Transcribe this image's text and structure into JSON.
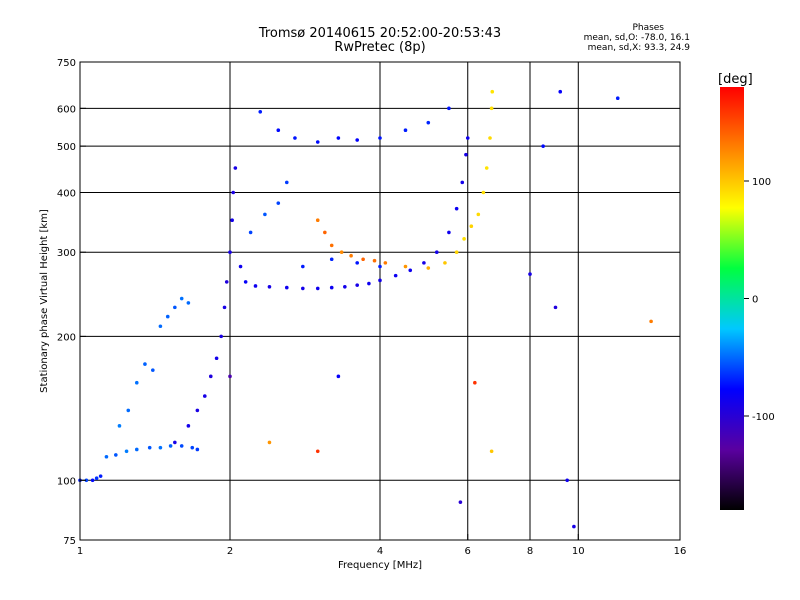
{
  "header": {
    "title": "Tromsø 20140615 20:52:00-20:53:43",
    "subtitle": "RwPretec (8p)",
    "stats_heading": "Phases",
    "stats_o": "mean, sd,O: -78.0, 16.1",
    "stats_x": "mean, sd,X:  93.3, 24.9"
  },
  "chart_data": {
    "type": "scatter",
    "xlabel": "Frequency [MHz]",
    "ylabel": "Stationary phase Virtual Height [km]",
    "x_scale": "log",
    "y_scale": "log",
    "xlim": [
      1,
      16
    ],
    "ylim": [
      75,
      750
    ],
    "x_ticks": [
      1,
      2,
      4,
      6,
      8,
      10,
      16
    ],
    "y_ticks": [
      75,
      100,
      200,
      300,
      400,
      500,
      600,
      750
    ],
    "grid": true,
    "colorbar": {
      "label": "[deg]",
      "range": [
        -180,
        180
      ],
      "ticks": [
        100,
        0,
        -100
      ],
      "colors": [
        "#000000",
        "#5a00a0",
        "#0000ff",
        "#00c8ff",
        "#00ff40",
        "#ffff00",
        "#ff8000",
        "#ff0000"
      ]
    },
    "series": [
      {
        "trace": "o-mode-low",
        "points": [
          [
            1.0,
            100,
            -70
          ],
          [
            1.03,
            100,
            -60
          ],
          [
            1.06,
            100,
            -75
          ],
          [
            1.08,
            101,
            -65
          ],
          [
            1.1,
            102,
            -70
          ],
          [
            1.13,
            112,
            -50
          ],
          [
            1.18,
            113,
            -55
          ],
          [
            1.24,
            115,
            -45
          ],
          [
            1.3,
            116,
            -50
          ],
          [
            1.38,
            117,
            -55
          ],
          [
            1.45,
            117,
            -48
          ],
          [
            1.52,
            118,
            -52
          ],
          [
            1.6,
            118,
            -58
          ],
          [
            1.68,
            117,
            -60
          ],
          [
            1.72,
            116,
            -62
          ],
          [
            1.2,
            130,
            -45
          ],
          [
            1.25,
            140,
            -50
          ],
          [
            1.3,
            160,
            -48
          ],
          [
            1.35,
            175,
            -52
          ],
          [
            1.4,
            170,
            -55
          ],
          [
            1.45,
            210,
            -50
          ],
          [
            1.5,
            220,
            -52
          ],
          [
            1.55,
            230,
            -55
          ],
          [
            1.6,
            240,
            -48
          ],
          [
            1.65,
            235,
            -50
          ]
        ]
      },
      {
        "trace": "o-mode-f-region",
        "points": [
          [
            1.55,
            120,
            -90
          ],
          [
            1.65,
            130,
            -88
          ],
          [
            1.72,
            140,
            -92
          ],
          [
            1.78,
            150,
            -90
          ],
          [
            1.83,
            165,
            -95
          ],
          [
            1.88,
            180,
            -88
          ],
          [
            1.92,
            200,
            -92
          ],
          [
            1.95,
            230,
            -90
          ],
          [
            1.97,
            260,
            -95
          ],
          [
            2.0,
            300,
            -90
          ],
          [
            2.02,
            350,
            -88
          ],
          [
            2.03,
            400,
            -92
          ],
          [
            2.05,
            450,
            -90
          ],
          [
            2.1,
            280,
            -85
          ],
          [
            2.15,
            260,
            -80
          ],
          [
            2.25,
            255,
            -85
          ],
          [
            2.4,
            254,
            -90
          ],
          [
            2.6,
            253,
            -85
          ],
          [
            2.8,
            252,
            -88
          ],
          [
            3.0,
            252,
            -86
          ],
          [
            3.2,
            253,
            -84
          ],
          [
            3.4,
            254,
            -88
          ],
          [
            3.6,
            256,
            -90
          ],
          [
            3.8,
            258,
            -85
          ],
          [
            4.0,
            262,
            -88
          ],
          [
            4.3,
            268,
            -84
          ],
          [
            4.6,
            275,
            -86
          ],
          [
            4.9,
            285,
            -90
          ],
          [
            5.2,
            300,
            -88
          ],
          [
            5.5,
            330,
            -86
          ],
          [
            5.7,
            370,
            -84
          ],
          [
            5.85,
            420,
            -88
          ],
          [
            5.95,
            480,
            -90
          ],
          [
            6.0,
            520,
            -86
          ],
          [
            2.2,
            330,
            -60
          ],
          [
            2.35,
            360,
            -55
          ],
          [
            2.5,
            380,
            -60
          ],
          [
            2.6,
            420,
            -62
          ],
          [
            2.3,
            590,
            -70
          ],
          [
            2.5,
            540,
            -75
          ],
          [
            2.7,
            520,
            -72
          ],
          [
            3.0,
            510,
            -74
          ],
          [
            3.3,
            520,
            -76
          ],
          [
            3.6,
            515,
            -78
          ],
          [
            4.0,
            520,
            -72
          ],
          [
            4.5,
            540,
            -70
          ],
          [
            5.0,
            560,
            -68
          ],
          [
            5.5,
            600,
            -72
          ],
          [
            2.8,
            280,
            -70
          ],
          [
            3.2,
            290,
            -68
          ],
          [
            3.6,
            285,
            -72
          ],
          [
            4.0,
            280,
            -70
          ]
        ]
      },
      {
        "trace": "x-mode-f-region",
        "points": [
          [
            3.0,
            350,
            130
          ],
          [
            3.1,
            330,
            140
          ],
          [
            3.2,
            310,
            135
          ],
          [
            3.35,
            300,
            125
          ],
          [
            3.5,
            295,
            130
          ],
          [
            3.7,
            290,
            140
          ],
          [
            3.9,
            288,
            135
          ],
          [
            4.1,
            285,
            130
          ],
          [
            4.5,
            280,
            120
          ],
          [
            5.0,
            278,
            110
          ],
          [
            5.4,
            285,
            100
          ],
          [
            5.7,
            300,
            95
          ],
          [
            5.9,
            320,
            90
          ],
          [
            6.1,
            340,
            95
          ],
          [
            6.3,
            360,
            92
          ],
          [
            6.45,
            400,
            90
          ],
          [
            6.55,
            450,
            88
          ],
          [
            6.65,
            520,
            92
          ],
          [
            6.7,
            600,
            90
          ],
          [
            6.72,
            650,
            88
          ]
        ]
      },
      {
        "trace": "scatter",
        "points": [
          [
            8.0,
            270,
            -90
          ],
          [
            9.2,
            650,
            -80
          ],
          [
            9.5,
            100,
            -85
          ],
          [
            9.8,
            80,
            -90
          ],
          [
            12.0,
            630,
            -70
          ],
          [
            14.0,
            215,
            130
          ],
          [
            6.2,
            160,
            160
          ],
          [
            6.7,
            115,
            100
          ],
          [
            5.8,
            90,
            -100
          ],
          [
            2.0,
            165,
            -120
          ],
          [
            3.3,
            165,
            -80
          ],
          [
            3.0,
            115,
            160
          ],
          [
            2.4,
            120,
            120
          ],
          [
            8.5,
            500,
            -75
          ],
          [
            9.0,
            230,
            -95
          ]
        ]
      }
    ]
  }
}
